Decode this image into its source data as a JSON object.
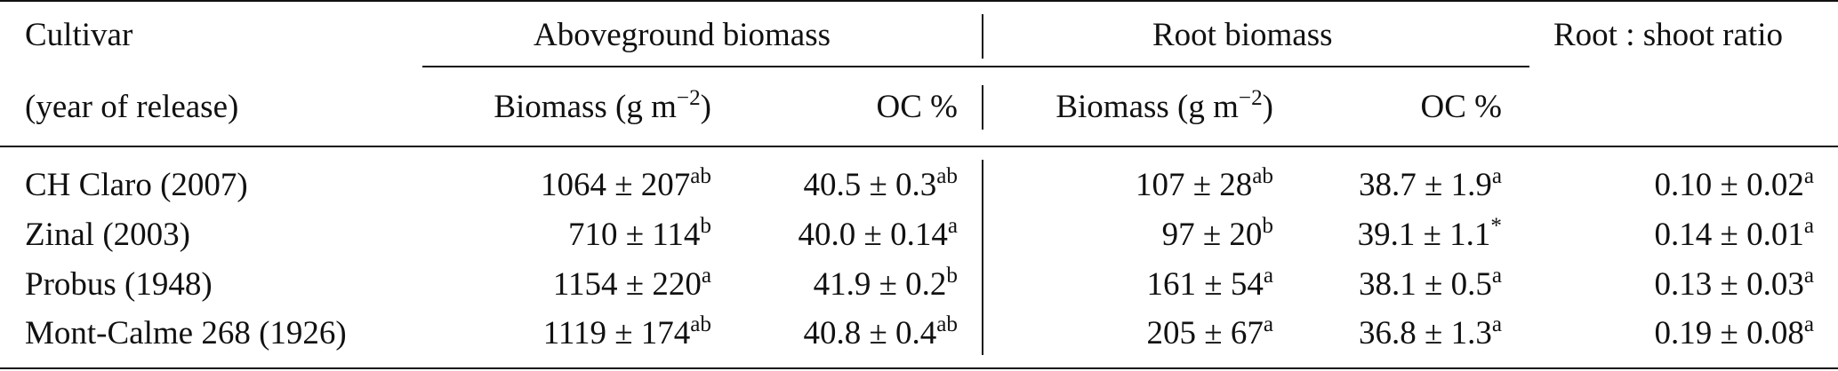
{
  "table": {
    "header": {
      "cultivar": "Cultivar",
      "year_of_release": "(year of release)",
      "aboveground_group": "Aboveground biomass",
      "root_group": "Root biomass",
      "ratio": "Root : shoot ratio",
      "ag_biomass": "Biomass (g m",
      "ag_biomass_exp": "−2",
      "ag_biomass_close": ")",
      "ag_oc": "OC %",
      "root_biomass": "Biomass (g m",
      "root_biomass_exp": "−2",
      "root_biomass_close": ")",
      "root_oc": "OC %"
    },
    "rows": [
      {
        "cultivar": "CH Claro (2007)",
        "ag_biomass": "1064 ± 207",
        "ag_biomass_sup": "ab",
        "ag_oc": "40.5 ± 0.3",
        "ag_oc_sup": "ab",
        "root_biomass": "107 ± 28",
        "root_biomass_sup": "ab",
        "root_oc": "38.7 ± 1.9",
        "root_oc_sup": "a",
        "ratio": "0.10 ± 0.02",
        "ratio_sup": "a"
      },
      {
        "cultivar": "Zinal (2003)",
        "ag_biomass": "710 ± 114",
        "ag_biomass_sup": "b",
        "ag_oc": "40.0 ± 0.14",
        "ag_oc_sup": "a",
        "root_biomass": "97 ± 20",
        "root_biomass_sup": "b",
        "root_oc": "39.1 ± 1.1",
        "root_oc_sup": "*",
        "ratio": "0.14 ± 0.01",
        "ratio_sup": "a"
      },
      {
        "cultivar": "Probus (1948)",
        "ag_biomass": "1154 ± 220",
        "ag_biomass_sup": "a",
        "ag_oc": "41.9 ± 0.2",
        "ag_oc_sup": "b",
        "root_biomass": "161 ± 54",
        "root_biomass_sup": "a",
        "root_oc": "38.1 ± 0.5",
        "root_oc_sup": "a",
        "ratio": "0.13 ± 0.03",
        "ratio_sup": "a"
      },
      {
        "cultivar": "Mont-Calme 268 (1926)",
        "ag_biomass": "1119 ± 174",
        "ag_biomass_sup": "ab",
        "ag_oc": "40.8 ± 0.4",
        "ag_oc_sup": "ab",
        "root_biomass": "205 ± 67",
        "root_biomass_sup": "a",
        "root_oc": "36.8 ± 1.3",
        "root_oc_sup": "a",
        "ratio": "0.19 ± 0.08",
        "ratio_sup": "a"
      }
    ]
  }
}
